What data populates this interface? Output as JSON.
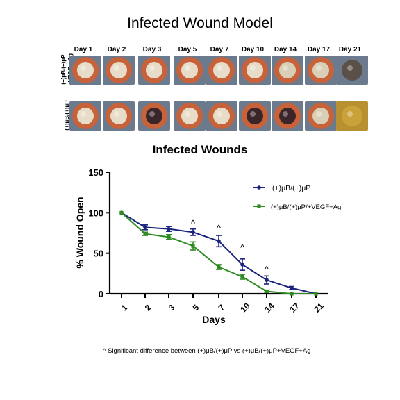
{
  "figure_title": "Infected Wound Model",
  "days": [
    "Day 1",
    "Day 2",
    "Day 3",
    "Day 5",
    "Day 7",
    "Day 10",
    "Day 14",
    "Day 17",
    "Day 21"
  ],
  "row_labels": {
    "top": "(+)μB/(+)μP\n+VEGF + Ag",
    "bottom": "(+)μB/(+)μP"
  },
  "photo_colors": {
    "ring": "#c8623a",
    "wound_light": "#e6dcc8",
    "wound_dark": "#3a2628",
    "healed": "#d9cfb6",
    "background": "#6b7a8c"
  },
  "footnote": "^ Significant difference between (+)μB/(+)μP vs (+)μB/(+)μP+VEGF+Ag",
  "chart_data": {
    "type": "line",
    "title": "Infected Wounds",
    "xlabel": "Days",
    "ylabel": "% Wound Open",
    "categories": [
      "1",
      "2",
      "3",
      "5",
      "7",
      "10",
      "14",
      "17",
      "21"
    ],
    "ylim": [
      0,
      150
    ],
    "yticks": [
      0,
      50,
      100,
      150
    ],
    "legend_position": "top-right",
    "series": [
      {
        "name": "(+)μB/(+)μP",
        "color": "#1a237e",
        "marker": "circle",
        "values": [
          100,
          82,
          80,
          76,
          65,
          36,
          17,
          7,
          0
        ],
        "errors": [
          0,
          3,
          3,
          4,
          7,
          7,
          5,
          2,
          0
        ]
      },
      {
        "name": "(+)μB/(+)μP/+VEGF+Ag",
        "color": "#2e8b22",
        "marker": "square",
        "values": [
          100,
          74,
          70,
          59,
          33,
          21,
          3,
          0,
          0
        ],
        "errors": [
          0,
          2,
          3,
          5,
          3,
          3,
          1,
          0,
          0
        ]
      }
    ],
    "annotations": [
      {
        "x": "5",
        "text": "^",
        "y": 90
      },
      {
        "x": "7",
        "text": "^",
        "y": 84
      },
      {
        "x": "10",
        "text": "^",
        "y": 60
      },
      {
        "x": "14",
        "text": "^",
        "y": 33
      }
    ]
  }
}
